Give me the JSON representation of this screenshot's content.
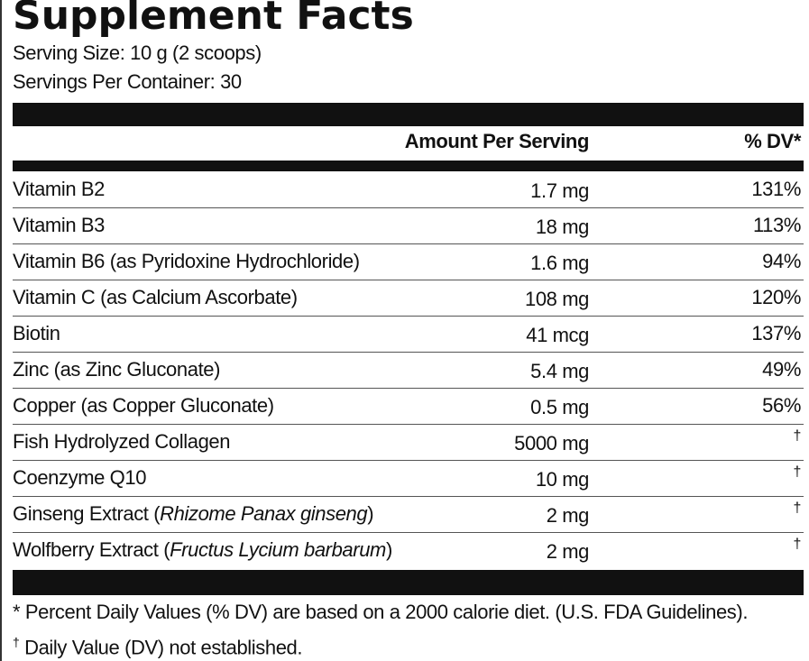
{
  "header": {
    "title": "Supplement Facts",
    "serving_size": "Serving Size: 10 g (2 scoops)",
    "servings_per_container": "Servings Per Container: 30"
  },
  "table": {
    "columns": [
      "Amount Per Serving",
      "% DV*"
    ],
    "rows": [
      {
        "name": "Vitamin B2",
        "amount": "1.7 mg",
        "dv": "131%"
      },
      {
        "name": "Vitamin B3",
        "amount": "18 mg",
        "dv": "113%"
      },
      {
        "name": "Vitamin B6 (as Pyridoxine Hydrochloride)",
        "amount": "1.6 mg",
        "dv": "94%"
      },
      {
        "name": "Vitamin C (as Calcium Ascorbate)",
        "amount": "108 mg",
        "dv": "120%"
      },
      {
        "name": "Biotin",
        "amount": "41 mcg",
        "dv": "137%"
      },
      {
        "name": "Zinc (as Zinc Gluconate)",
        "amount": "5.4 mg",
        "dv": "49%"
      },
      {
        "name": "Copper (as Copper Gluconate)",
        "amount": "0.5 mg",
        "dv": "56%"
      },
      {
        "name": "Fish Hydrolyzed Collagen",
        "amount": "5000 mg",
        "dv": "†"
      },
      {
        "name": "Coenzyme Q10",
        "amount": "10 mg",
        "dv": "†"
      },
      {
        "name": "Ginseng Extract (",
        "latin": "Rhizome Panax ginseng",
        "close": ")",
        "amount": "2 mg",
        "dv": "†"
      },
      {
        "name": "Wolfberry Extract (",
        "latin": "Fructus Lycium barbarum",
        "close": ")",
        "amount": "2 mg",
        "dv": "†"
      }
    ]
  },
  "footnotes": [
    {
      "text": "* Percent Daily Values (% DV) are based on a 2000 calorie diet. (U.S. FDA Guidelines)."
    },
    {
      "mark": "†",
      "text": "Daily Value (DV) not established."
    }
  ]
}
